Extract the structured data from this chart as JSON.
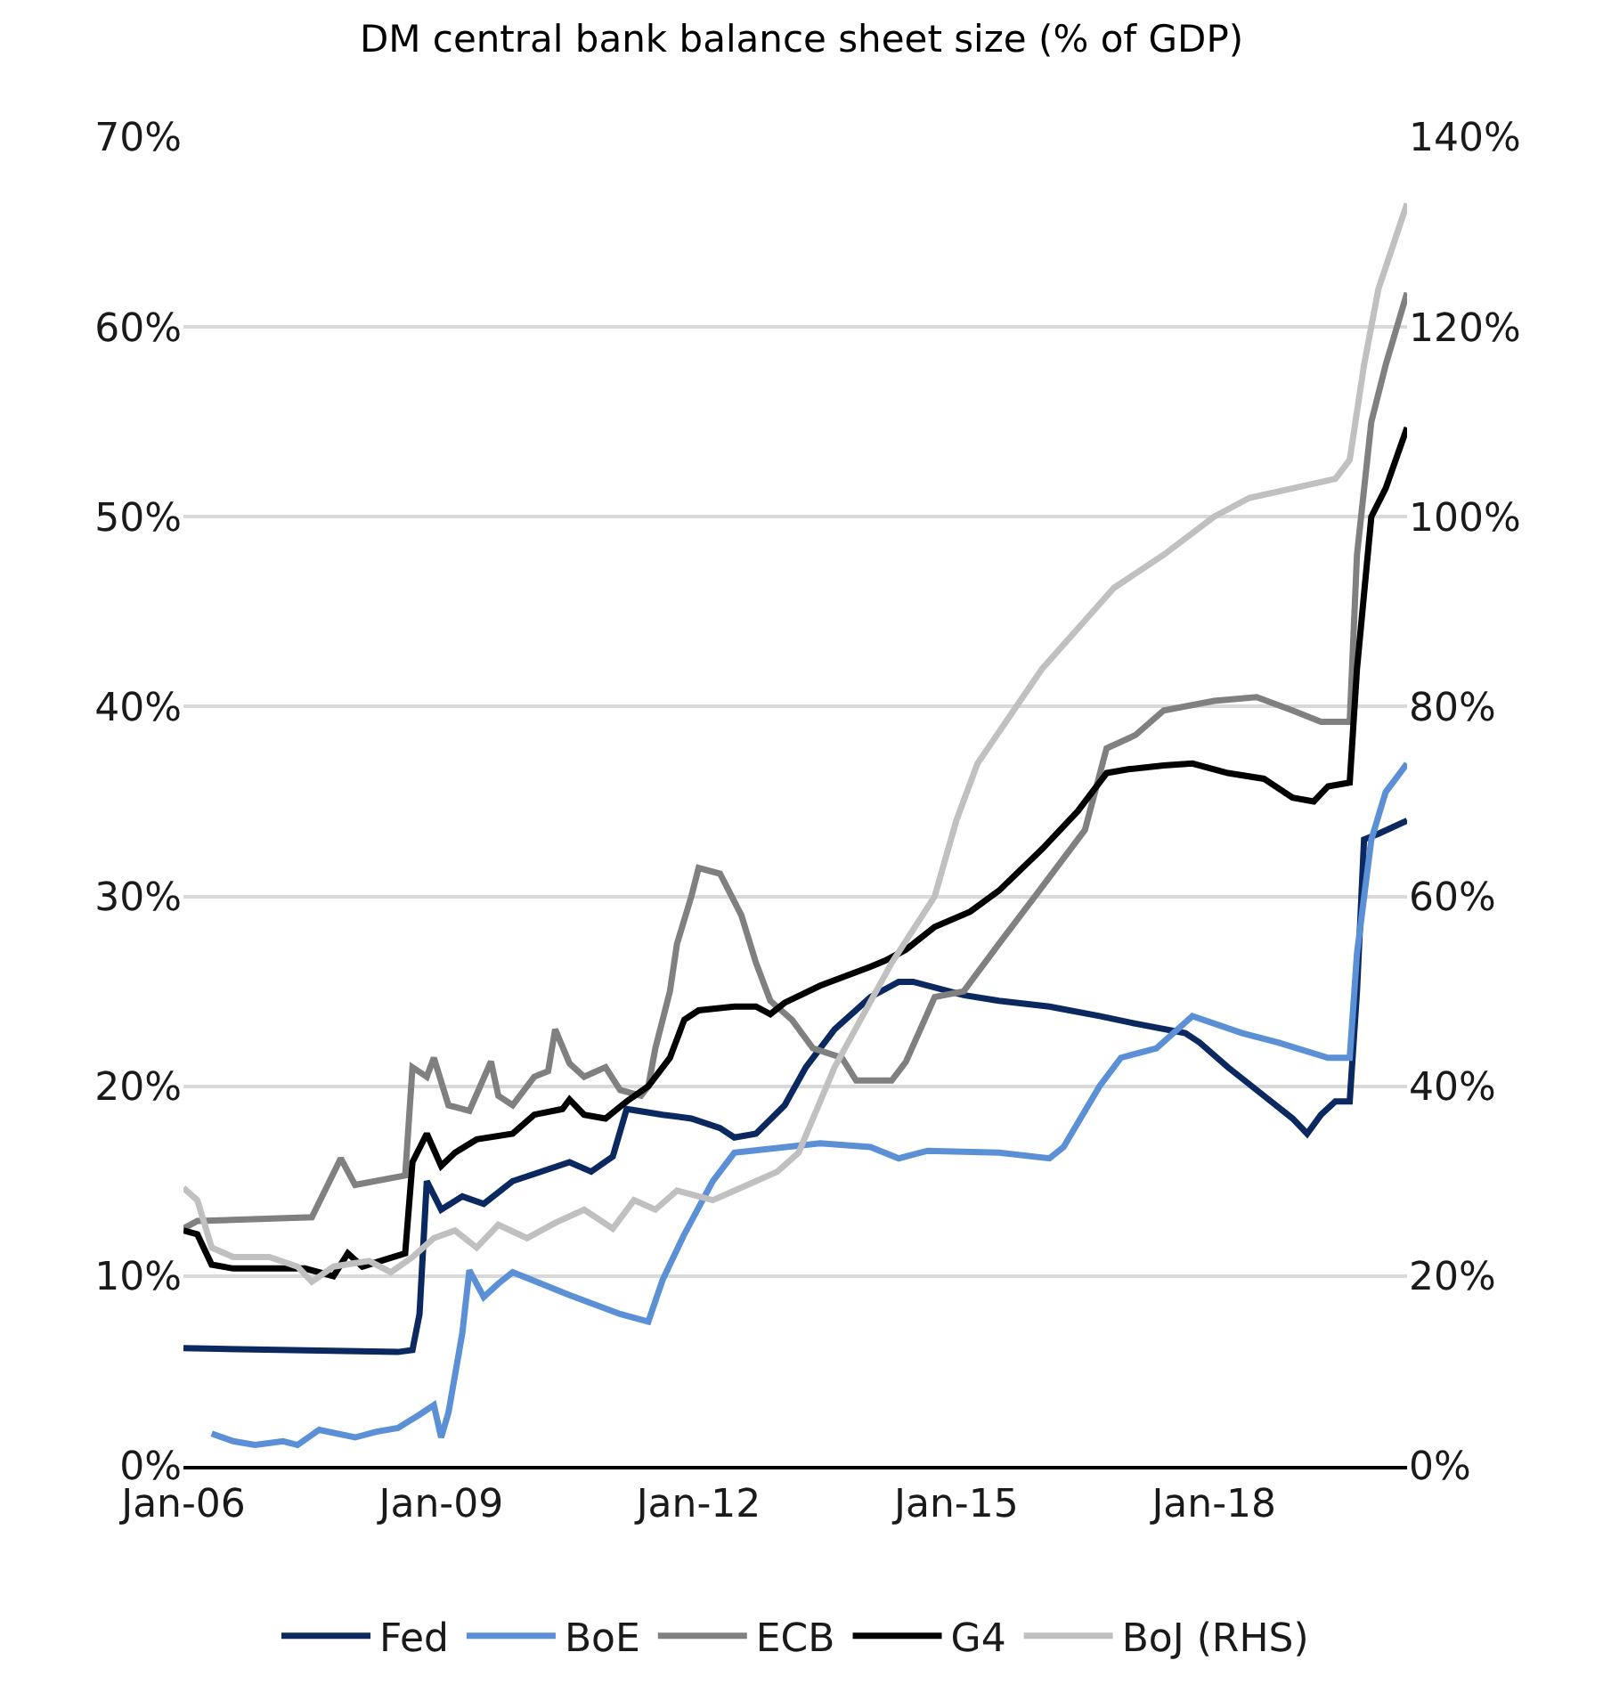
{
  "chart_data": {
    "type": "line",
    "title": "DM central bank balance sheet size (% of GDP)",
    "series": [
      {
        "name": "Fed",
        "color": "#0b2860",
        "x": [
          "2006-01",
          "2008-07",
          "2008-09",
          "2008-10",
          "2008-11",
          "2009-01",
          "2009-04",
          "2009-07",
          "2009-11",
          "2010-07",
          "2010-10",
          "2011-01",
          "2011-03",
          "2011-08",
          "2011-12",
          "2012-04",
          "2012-06",
          "2012-09",
          "2013-01",
          "2013-04",
          "2013-08",
          "2014-01",
          "2014-05",
          "2014-07",
          "2015-02",
          "2015-07",
          "2016-02",
          "2016-09",
          "2017-02",
          "2017-09",
          "2017-11",
          "2018-03",
          "2018-08",
          "2018-12",
          "2019-02",
          "2019-04",
          "2019-06",
          "2019-08",
          "2019-09",
          "2019-10",
          "2019-12",
          "2020-04"
        ],
        "values": [
          6.2,
          6.0,
          6.1,
          8,
          15,
          13.5,
          14.2,
          13.8,
          15,
          16,
          15.5,
          16.3,
          18.8,
          18.5,
          18.3,
          17.8,
          17.3,
          17.5,
          19,
          21,
          23,
          24.7,
          25.5,
          25.5,
          24.8,
          24.5,
          24.2,
          23.7,
          23.3,
          22.8,
          22.3,
          21,
          19.5,
          18.3,
          17.5,
          18.5,
          19.2,
          19.2,
          25,
          33,
          33.3,
          34
        ]
      },
      {
        "name": "BoE",
        "color": "#5b8fd6",
        "x": [
          "2006-05",
          "2006-08",
          "2006-11",
          "2007-03",
          "2007-05",
          "2007-08",
          "2008-01",
          "2008-04",
          "2008-07",
          "2008-10",
          "2008-12",
          "2009-01",
          "2009-02",
          "2009-04",
          "2009-05",
          "2009-07",
          "2009-09",
          "2009-11",
          "2010-07",
          "2011-02",
          "2011-06",
          "2011-08",
          "2011-11",
          "2012-03",
          "2012-06",
          "2013-06",
          "2014-01",
          "2014-05",
          "2014-09",
          "2015-07",
          "2016-02",
          "2016-04",
          "2016-09",
          "2016-12",
          "2017-05",
          "2017-10",
          "2018-05",
          "2018-10",
          "2019-05",
          "2019-08",
          "2019-09",
          "2019-11",
          "2020-01",
          "2020-04"
        ],
        "values": [
          1.7,
          1.3,
          1.1,
          1.3,
          1.1,
          1.9,
          1.5,
          1.8,
          2.0,
          2.7,
          3.2,
          1.5,
          2.8,
          7,
          10.3,
          8.9,
          9.6,
          10.2,
          9.0,
          8.0,
          7.6,
          9.8,
          12.2,
          15,
          16.5,
          17.0,
          16.8,
          16.2,
          16.6,
          16.5,
          16.2,
          16.8,
          20,
          21.5,
          22,
          23.7,
          22.8,
          22.3,
          21.5,
          21.5,
          27,
          33,
          35.5,
          37
        ]
      },
      {
        "name": "ECB",
        "color": "#808080",
        "x": [
          "2006-01",
          "2006-03",
          "2007-07",
          "2007-11",
          "2008-01",
          "2008-08",
          "2008-09",
          "2008-11",
          "2008-12",
          "2009-02",
          "2009-05",
          "2009-08",
          "2009-09",
          "2009-11",
          "2010-02",
          "2010-04",
          "2010-05",
          "2010-07",
          "2010-09",
          "2010-12",
          "2011-02",
          "2011-05",
          "2011-06",
          "2011-07",
          "2011-09",
          "2011-10",
          "2011-12",
          "2012-01",
          "2012-04",
          "2012-07",
          "2012-09",
          "2012-11",
          "2013-02",
          "2013-05",
          "2013-09",
          "2013-11",
          "2014-04",
          "2014-06",
          "2014-10",
          "2015-02",
          "2015-07",
          "2015-12",
          "2016-07",
          "2016-10",
          "2017-02",
          "2017-06",
          "2018-01",
          "2018-07",
          "2018-12",
          "2019-04",
          "2019-08",
          "2019-09",
          "2019-11",
          "2020-01",
          "2020-04"
        ],
        "values": [
          12.5,
          12.9,
          13.1,
          16.2,
          14.8,
          15.3,
          21,
          20.5,
          21.5,
          19,
          18.7,
          21.3,
          19.5,
          19,
          20.5,
          20.8,
          23,
          21.2,
          20.5,
          21,
          19.8,
          19.5,
          20,
          22,
          25,
          27.5,
          30,
          31.5,
          31.2,
          29,
          26.5,
          24.5,
          23.5,
          22,
          21.5,
          20.3,
          20.3,
          21.3,
          24.7,
          25,
          27.5,
          30,
          33.5,
          37.8,
          38.5,
          39.8,
          40.3,
          40.5,
          39.8,
          39.2,
          39.2,
          48,
          55,
          58,
          61.8
        ]
      },
      {
        "name": "G4",
        "color": "#000000",
        "x": [
          "2006-01",
          "2006-03",
          "2006-05",
          "2006-08",
          "2007-06",
          "2007-10",
          "2007-12",
          "2008-02",
          "2008-08",
          "2008-09",
          "2008-11",
          "2009-01",
          "2009-03",
          "2009-06",
          "2009-11",
          "2010-02",
          "2010-06",
          "2010-07",
          "2010-09",
          "2010-12",
          "2011-03",
          "2011-06",
          "2011-09",
          "2011-11",
          "2012-01",
          "2012-06",
          "2012-09",
          "2012-11",
          "2013-01",
          "2013-06",
          "2014-01",
          "2014-03",
          "2014-06",
          "2014-10",
          "2015-03",
          "2015-07",
          "2016-01",
          "2016-06",
          "2016-10",
          "2017-01",
          "2017-06",
          "2017-10",
          "2018-03",
          "2018-08",
          "2018-12",
          "2019-03",
          "2019-05",
          "2019-08",
          "2019-09",
          "2019-11",
          "2020-01",
          "2020-04"
        ],
        "values": [
          12.4,
          12.2,
          10.6,
          10.4,
          10.4,
          10.0,
          11.2,
          10.5,
          11.2,
          16,
          17.5,
          15.8,
          16.5,
          17.2,
          17.5,
          18.5,
          18.8,
          19.3,
          18.5,
          18.3,
          19.2,
          20.0,
          21.5,
          23.5,
          24.0,
          24.2,
          24.2,
          23.8,
          24.4,
          25.3,
          26.3,
          26.6,
          27.2,
          28.4,
          29.2,
          30.3,
          32.5,
          34.5,
          36.5,
          36.7,
          36.9,
          37.0,
          36.5,
          36.2,
          35.2,
          35.0,
          35.8,
          36.0,
          42,
          50,
          51.5,
          54.7
        ]
      },
      {
        "name": "BoJ (RHS)",
        "color": "#c0c0c0",
        "axis": "y2",
        "x": [
          "2006-01",
          "2006-03",
          "2006-05",
          "2006-08",
          "2007-01",
          "2007-05",
          "2007-07",
          "2007-10",
          "2008-03",
          "2008-06",
          "2008-09",
          "2008-12",
          "2009-03",
          "2009-06",
          "2009-09",
          "2010-01",
          "2010-05",
          "2010-09",
          "2011-01",
          "2011-04",
          "2011-07",
          "2011-10",
          "2012-03",
          "2012-06",
          "2012-12",
          "2013-03",
          "2013-08",
          "2014-04",
          "2014-10",
          "2015-01",
          "2015-04",
          "2016-01",
          "2016-11",
          "2017-06",
          "2018-01",
          "2018-06",
          "2018-12",
          "2019-06",
          "2019-08",
          "2019-10",
          "2019-12",
          "2020-04"
        ],
        "values": [
          29.3,
          28,
          23,
          22,
          22,
          21,
          19.4,
          21,
          21.6,
          20.4,
          22,
          24,
          24.8,
          23,
          25.4,
          24,
          25.6,
          27,
          25,
          28,
          27,
          29,
          28,
          29,
          31,
          33,
          42,
          53,
          60,
          68,
          74,
          84,
          92.5,
          96,
          100,
          102,
          103,
          104,
          106,
          116,
          124,
          133
        ]
      }
    ],
    "xlim": [
      "2006-01",
      "2020-04"
    ],
    "xticks": [
      {
        "value": "2006-01",
        "label": "Jan-06"
      },
      {
        "value": "2009-01",
        "label": "Jan-09"
      },
      {
        "value": "2012-01",
        "label": "Jan-12"
      },
      {
        "value": "2015-01",
        "label": "Jan-15"
      },
      {
        "value": "2018-01",
        "label": "Jan-18"
      }
    ],
    "ylim": [
      0,
      70
    ],
    "yticks": [
      {
        "value": 0,
        "label": "0%"
      },
      {
        "value": 10,
        "label": "10%"
      },
      {
        "value": 20,
        "label": "20%"
      },
      {
        "value": 30,
        "label": "30%"
      },
      {
        "value": 40,
        "label": "40%"
      },
      {
        "value": 50,
        "label": "50%"
      },
      {
        "value": 60,
        "label": "60%"
      },
      {
        "value": 70,
        "label": "70%"
      }
    ],
    "y2lim": [
      0,
      140
    ],
    "y2ticks": [
      {
        "value": 0,
        "label": "0%"
      },
      {
        "value": 20,
        "label": "20%"
      },
      {
        "value": 40,
        "label": "40%"
      },
      {
        "value": 60,
        "label": "60%"
      },
      {
        "value": 80,
        "label": "80%"
      },
      {
        "value": 100,
        "label": "100%"
      },
      {
        "value": 120,
        "label": "120%"
      },
      {
        "value": 140,
        "label": "140%"
      }
    ],
    "grid": "y",
    "legend": "bottom",
    "marker": "none",
    "line_style": "solid"
  }
}
